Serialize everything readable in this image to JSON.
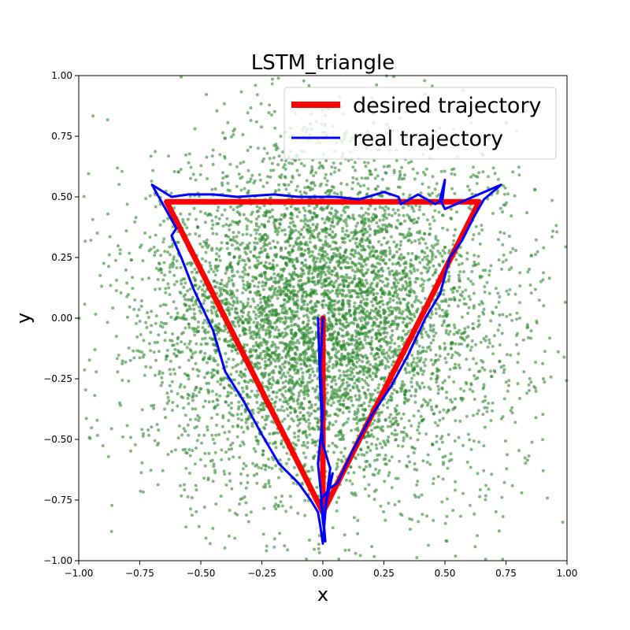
{
  "chart_data": {
    "type": "scatter",
    "title": "LSTM_triangle",
    "xlabel": "x",
    "ylabel": "y",
    "xlim": [
      -1.0,
      1.0
    ],
    "ylim": [
      -1.0,
      1.0
    ],
    "xticks": [
      "−1.00",
      "−0.75",
      "−0.50",
      "−0.25",
      "0.00",
      "0.25",
      "0.50",
      "0.75",
      "1.00"
    ],
    "yticks": [
      "−1.00",
      "−0.75",
      "−0.50",
      "−0.25",
      "0.00",
      "0.25",
      "0.50",
      "0.75",
      "1.00"
    ],
    "grid": false,
    "legend_position": "top-right",
    "scatter_points": {
      "color": "#2e8b2e",
      "approx_count": 6000,
      "center": [
        0.0,
        0.0
      ],
      "spread_x": 0.37,
      "spread_y": 0.36,
      "seed": 7
    },
    "series": [
      {
        "name": "desired trajectory",
        "color": "#ff0000",
        "x": [
          0.0,
          0.0,
          0.64,
          -0.64,
          0.0
        ],
        "y": [
          0.0,
          -0.8,
          0.48,
          0.48,
          -0.8
        ]
      },
      {
        "name": "real trajectory",
        "color": "#0000ff",
        "x": [
          0.0,
          -0.01,
          0.0,
          -0.02,
          0.0,
          0.01,
          -0.01,
          0.03,
          0.06,
          0.12,
          0.2,
          0.28,
          0.35,
          0.42,
          0.48,
          0.52,
          0.57,
          0.62,
          0.66,
          0.73,
          0.5,
          0.48,
          0.5,
          0.49,
          0.46,
          0.39,
          0.32,
          0.31,
          0.25,
          0.15,
          0.05,
          -0.1,
          -0.2,
          -0.35,
          -0.45,
          -0.55,
          -0.62,
          -0.7,
          -0.6,
          -0.62,
          -0.58,
          -0.53,
          -0.45,
          -0.4,
          -0.32,
          -0.25,
          -0.18,
          -0.1,
          -0.05,
          -0.02,
          -0.01,
          0.0,
          0.01,
          0.02,
          0.04,
          0.01,
          0.03,
          0.0,
          -0.01,
          -0.02
        ],
        "y": [
          0.0,
          -0.2,
          -0.4,
          -0.6,
          -0.8,
          -0.92,
          -0.75,
          -0.7,
          -0.68,
          -0.55,
          -0.4,
          -0.28,
          -0.15,
          0.0,
          0.1,
          0.25,
          0.32,
          0.42,
          0.49,
          0.55,
          0.45,
          0.49,
          0.57,
          0.49,
          0.47,
          0.51,
          0.47,
          0.5,
          0.52,
          0.49,
          0.5,
          0.5,
          0.51,
          0.5,
          0.51,
          0.51,
          0.5,
          0.55,
          0.37,
          0.34,
          0.25,
          0.12,
          -0.05,
          -0.22,
          -0.35,
          -0.48,
          -0.6,
          -0.68,
          -0.75,
          -0.8,
          -0.86,
          -0.93,
          -0.8,
          -0.7,
          -0.64,
          -0.78,
          -0.62,
          -0.52,
          -0.3,
          0.0
        ]
      }
    ]
  }
}
